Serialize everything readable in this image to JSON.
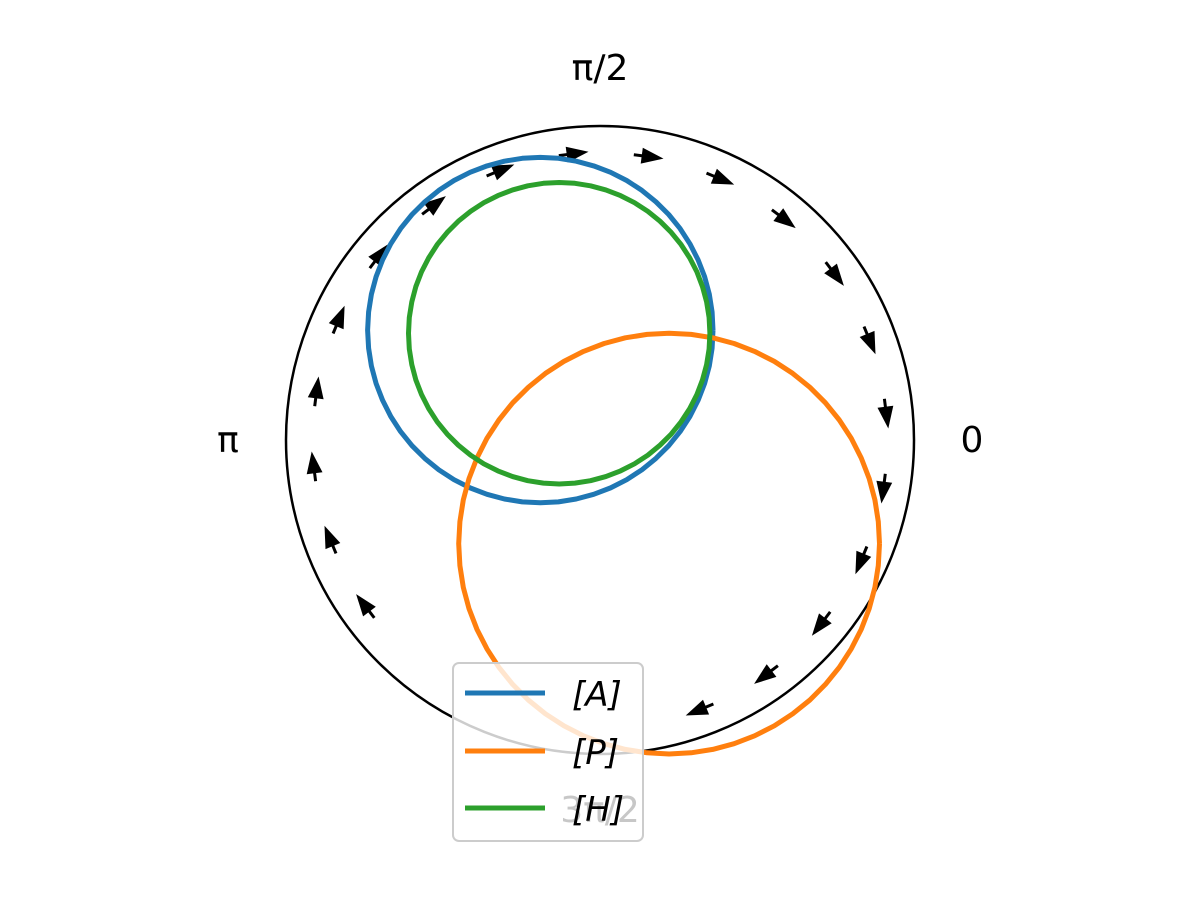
{
  "chart_data": {
    "type": "line",
    "projection": "polar",
    "title": "",
    "angle_tick_labels": [
      "0",
      "π/2",
      "π",
      "3π/2"
    ],
    "angle_ticks": [
      0,
      1.5708,
      3.1416,
      4.7124
    ],
    "unit_circle": true,
    "arrows_on_circle": "clockwise tangent arrows",
    "legend_placement": "bottom-center",
    "series": [
      {
        "name": "[A]",
        "color": "#1f77b4",
        "center": [
          -0.19,
          0.35
        ],
        "radius": 0.55
      },
      {
        "name": "[P]",
        "color": "#ff7f0e",
        "center": [
          0.22,
          -0.33
        ],
        "radius": 0.67
      },
      {
        "name": "[H]",
        "color": "#2ca02c",
        "center": [
          -0.13,
          0.34
        ],
        "radius": 0.48
      }
    ]
  }
}
